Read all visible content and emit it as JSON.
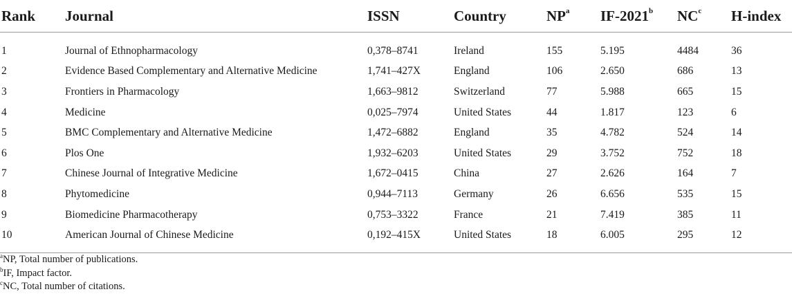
{
  "table": {
    "headers": {
      "rank": "Rank",
      "journal": "Journal",
      "issn": "ISSN",
      "country": "Country",
      "np": "NP",
      "np_sup": "a",
      "if": "IF-2021",
      "if_sup": "b",
      "nc": "NC",
      "nc_sup": "c",
      "hindex": "H-index"
    },
    "rows": [
      {
        "rank": "1",
        "journal": "Journal of Ethnopharmacology",
        "issn": "0,378–8741",
        "country": "Ireland",
        "np": "155",
        "if": "5.195",
        "nc": "4484",
        "hindex": "36"
      },
      {
        "rank": "2",
        "journal": "Evidence Based Complementary and Alternative Medicine",
        "issn": "1,741–427X",
        "country": "England",
        "np": "106",
        "if": "2.650",
        "nc": "686",
        "hindex": "13"
      },
      {
        "rank": "3",
        "journal": "Frontiers in Pharmacology",
        "issn": "1,663–9812",
        "country": "Switzerland",
        "np": "77",
        "if": "5.988",
        "nc": "665",
        "hindex": "15"
      },
      {
        "rank": "4",
        "journal": "Medicine",
        "issn": "0,025–7974",
        "country": "United States",
        "np": "44",
        "if": "1.817",
        "nc": "123",
        "hindex": "6"
      },
      {
        "rank": "5",
        "journal": "BMC Complementary and Alternative Medicine",
        "issn": "1,472–6882",
        "country": "England",
        "np": "35",
        "if": "4.782",
        "nc": "524",
        "hindex": "14"
      },
      {
        "rank": "6",
        "journal": "Plos One",
        "issn": "1,932–6203",
        "country": "United States",
        "np": "29",
        "if": "3.752",
        "nc": "752",
        "hindex": "18"
      },
      {
        "rank": "7",
        "journal": "Chinese Journal of Integrative Medicine",
        "issn": "1,672–0415",
        "country": "China",
        "np": "27",
        "if": "2.626",
        "nc": "164",
        "hindex": "7"
      },
      {
        "rank": "8",
        "journal": "Phytomedicine",
        "issn": "0,944–7113",
        "country": "Germany",
        "np": "26",
        "if": "6.656",
        "nc": "535",
        "hindex": "15"
      },
      {
        "rank": "9",
        "journal": "Biomedicine Pharmacotherapy",
        "issn": "0,753–3322",
        "country": "France",
        "np": "21",
        "if": "7.419",
        "nc": "385",
        "hindex": "11"
      },
      {
        "rank": "10",
        "journal": "American Journal of Chinese Medicine",
        "issn": "0,192–415X",
        "country": "United States",
        "np": "18",
        "if": "6.005",
        "nc": "295",
        "hindex": "12"
      }
    ]
  },
  "footnotes": [
    {
      "sup": "a",
      "text": "NP, Total number of publications."
    },
    {
      "sup": "b",
      "text": "IF, Impact factor."
    },
    {
      "sup": "c",
      "text": "NC, Total number of citations."
    }
  ]
}
